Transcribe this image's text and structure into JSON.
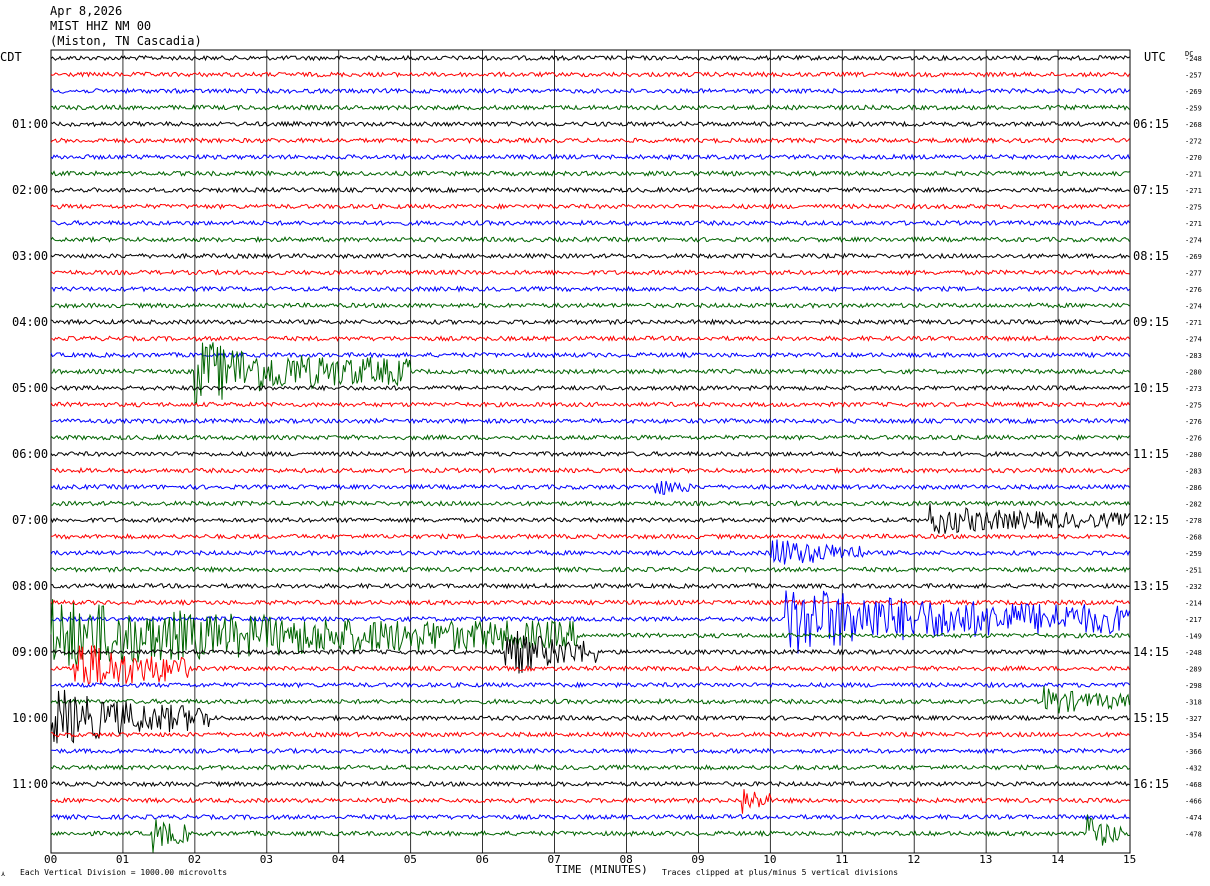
{
  "header": {
    "date": "Apr 8,2026",
    "station": "MIST HHZ NM 00",
    "location": "(Miston, TN Cascadia)"
  },
  "left_tz": "CDT",
  "right_tz": "UTC",
  "dc_label": "DC",
  "footer": {
    "scale_note": "Each Vertical Division = 1000.00 microvolts",
    "xlabel": "TIME (MINUTES)",
    "clip_note": "Traces clipped at plus/minus 5 vertical divisions"
  },
  "chart_data": {
    "type": "line",
    "title": "MIST HHZ NM 00",
    "xlabel": "TIME (MINUTES)",
    "xlim": [
      0,
      15
    ],
    "x_ticks": [
      "00",
      "01",
      "02",
      "03",
      "04",
      "05",
      "06",
      "07",
      "08",
      "09",
      "10",
      "11",
      "12",
      "13",
      "14",
      "15"
    ],
    "grid": "vertical lines every minute",
    "trace_colors": [
      "#000000",
      "#ff0000",
      "#0000ff",
      "#006400"
    ],
    "row_count": 48,
    "left_time_labels": [
      {
        "row": 4,
        "label": "01:00"
      },
      {
        "row": 8,
        "label": "02:00"
      },
      {
        "row": 12,
        "label": "03:00"
      },
      {
        "row": 16,
        "label": "04:00"
      },
      {
        "row": 20,
        "label": "05:00"
      },
      {
        "row": 24,
        "label": "06:00"
      },
      {
        "row": 28,
        "label": "07:00"
      },
      {
        "row": 32,
        "label": "08:00"
      },
      {
        "row": 36,
        "label": "09:00"
      },
      {
        "row": 40,
        "label": "10:00"
      },
      {
        "row": 44,
        "label": "11:00"
      }
    ],
    "right_time_labels": [
      {
        "row": 4,
        "label": "06:15"
      },
      {
        "row": 8,
        "label": "07:15"
      },
      {
        "row": 12,
        "label": "08:15"
      },
      {
        "row": 16,
        "label": "09:15"
      },
      {
        "row": 20,
        "label": "10:15"
      },
      {
        "row": 24,
        "label": "11:15"
      },
      {
        "row": 28,
        "label": "12:15"
      },
      {
        "row": 32,
        "label": "13:15"
      },
      {
        "row": 36,
        "label": "14:15"
      },
      {
        "row": 40,
        "label": "15:15"
      },
      {
        "row": 44,
        "label": "16:15"
      }
    ],
    "dc_offsets": [
      "-248",
      "-257",
      "-269",
      "-259",
      "-268",
      "-272",
      "-270",
      "-271",
      "-271",
      "-275",
      "-271",
      "-274",
      "-269",
      "-277",
      "-276",
      "-274",
      "-271",
      "-274",
      "-283",
      "-280",
      "-273",
      "-275",
      "-276",
      "-276",
      "-280",
      "-283",
      "-286",
      "-282",
      "-278",
      "-268",
      "-259",
      "-251",
      "-232",
      "-214",
      "-217",
      "-149",
      "-248",
      "-289",
      "-298",
      "-318",
      "-327",
      "-354",
      "-366",
      "-432",
      "-468",
      "-466",
      "-474",
      "-478"
    ],
    "events": [
      {
        "row": 19,
        "start_min": 2.0,
        "end_min": 5.0,
        "peak": 3.2,
        "label": ""
      },
      {
        "row": 26,
        "start_min": 8.4,
        "end_min": 8.9,
        "peak": 0.9,
        "label": ""
      },
      {
        "row": 28,
        "start_min": 12.2,
        "end_min": 15.0,
        "peak": 1.4,
        "label": ""
      },
      {
        "row": 30,
        "start_min": 10.0,
        "end_min": 11.3,
        "peak": 1.6,
        "label": ""
      },
      {
        "row": 34,
        "start_min": 10.2,
        "end_min": 15.0,
        "peak": 3.5,
        "label": ""
      },
      {
        "row": 35,
        "start_min": 0.0,
        "end_min": 7.3,
        "peak": 3.5,
        "label": ""
      },
      {
        "row": 36,
        "start_min": 6.3,
        "end_min": 7.6,
        "peak": 2.6,
        "label": ""
      },
      {
        "row": 37,
        "start_min": 0.3,
        "end_min": 1.9,
        "peak": 3.0,
        "label": ""
      },
      {
        "row": 39,
        "start_min": 13.8,
        "end_min": 15.0,
        "peak": 1.4,
        "label": ""
      },
      {
        "row": 40,
        "start_min": 0.0,
        "end_min": 2.2,
        "peak": 3.0,
        "label": ""
      },
      {
        "row": 45,
        "start_min": 9.6,
        "end_min": 10.0,
        "peak": 1.6,
        "label": ""
      },
      {
        "row": 47,
        "start_min": 1.4,
        "end_min": 1.9,
        "peak": 2.0,
        "label": ""
      },
      {
        "row": 47,
        "start_min": 14.4,
        "end_min": 14.9,
        "peak": 2.0,
        "label": ""
      }
    ]
  }
}
